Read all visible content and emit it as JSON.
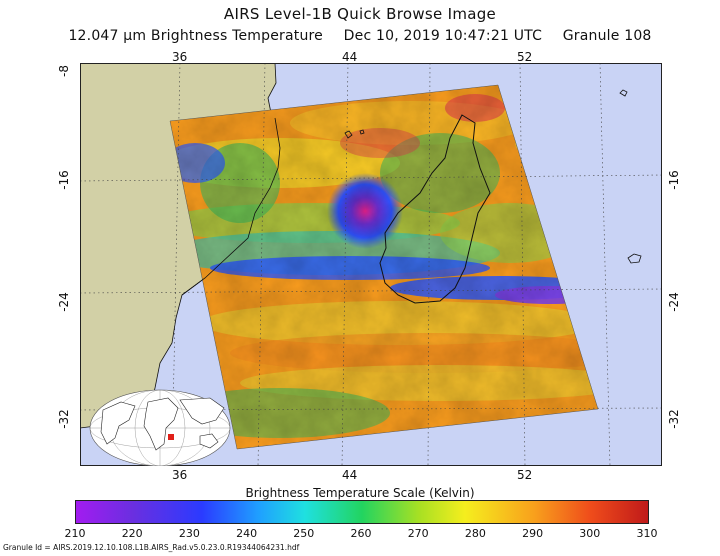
{
  "title": "AIRS Level-1B Quick Browse Image",
  "subtitle": {
    "channel": "12.047 µm Brightness Temperature",
    "datetime": "Dec 10, 2019 10:47:21 UTC",
    "granule": "Granule 108"
  },
  "map": {
    "lon_labels": [
      "36",
      "44",
      "52"
    ],
    "lat_labels": [
      "-8",
      "-16",
      "-24",
      "-32"
    ],
    "land_color": "#d2d0a6",
    "ocean_color": "#c9d3f5"
  },
  "colorbar": {
    "title": "Brightness Temperature Scale (Kelvin)",
    "ticks": [
      "210",
      "220",
      "230",
      "240",
      "250",
      "260",
      "270",
      "280",
      "290",
      "300",
      "310"
    ],
    "min": 210,
    "max": 310
  },
  "granule_id": "Granule Id = AIRS.2019.12.10.108.L1B.AIRS_Rad.v5.0.23.0.R19344064231.hdf"
}
